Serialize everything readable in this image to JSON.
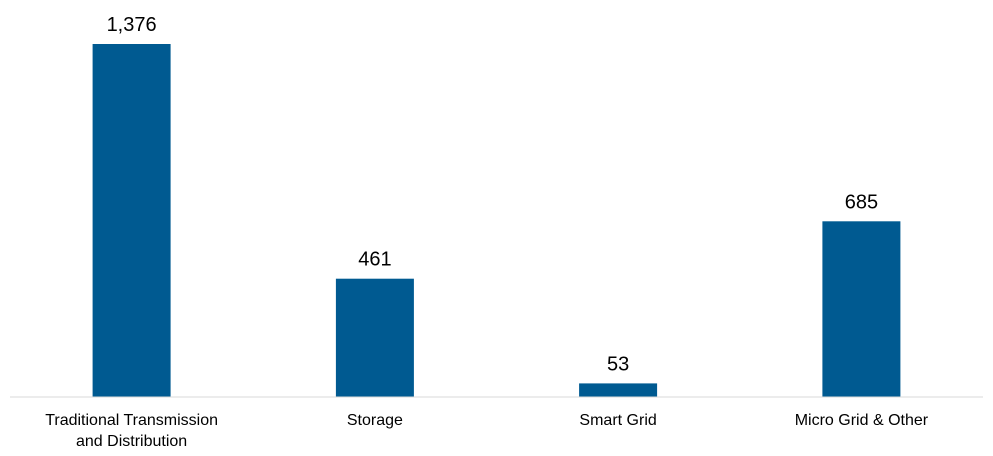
{
  "chart_data": {
    "type": "bar",
    "categories": [
      [
        "Traditional Transmission",
        "and Distribution"
      ],
      [
        "Storage"
      ],
      [
        "Smart Grid"
      ],
      [
        "Micro Grid & Other"
      ]
    ],
    "values": [
      1376,
      461,
      53,
      685
    ],
    "value_labels": [
      "1,376",
      "461",
      "53",
      "685"
    ],
    "title": "",
    "xlabel": "",
    "ylabel": "",
    "ylim": [
      0,
      1376
    ],
    "grid": false,
    "legend": "none",
    "bar_color": "#005a91",
    "axis_color": "#d9d9d9"
  }
}
